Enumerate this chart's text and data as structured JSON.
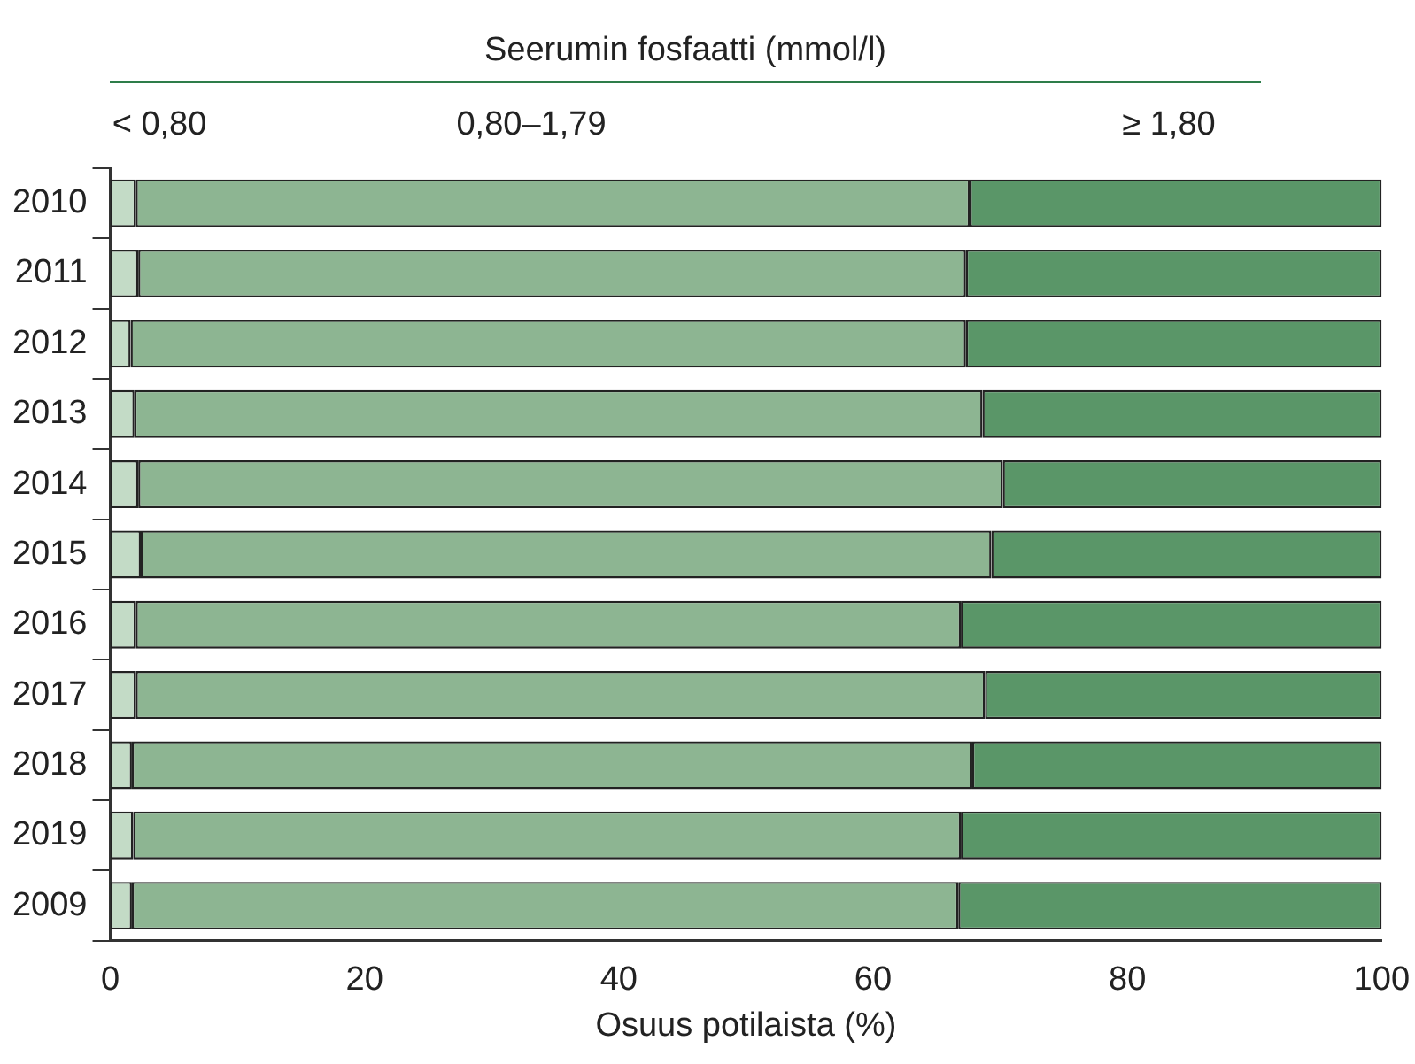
{
  "chart_data": {
    "type": "bar",
    "orientation": "horizontal",
    "stacked": true,
    "legend": "top",
    "legend_title": "Seerumin fosfaatti (mmol/l)",
    "xlabel": "Osuus potilaista (%)",
    "categories": [
      "2010",
      "2011",
      "2012",
      "2013",
      "2014",
      "2015",
      "2016",
      "2017",
      "2018",
      "2019",
      "2009"
    ],
    "xlim": [
      0,
      100
    ],
    "xticks": [
      0,
      20,
      40,
      60,
      80,
      100
    ],
    "grid": false,
    "series": [
      {
        "name": "< 0,80",
        "color": "#c3dbc6",
        "values": [
          2.0,
          2.2,
          1.6,
          1.9,
          2.2,
          2.4,
          2.0,
          2.0,
          1.7,
          1.8,
          1.7
        ]
      },
      {
        "name": "0,80–1,79",
        "color": "#8db592",
        "values": [
          65.6,
          65.1,
          65.7,
          66.7,
          68.0,
          66.9,
          64.9,
          66.8,
          66.1,
          65.1,
          65.0
        ]
      },
      {
        "name": "≥ 1,80",
        "color": "#5a9668",
        "values": [
          32.4,
          32.7,
          32.7,
          31.4,
          29.8,
          30.7,
          33.1,
          31.2,
          32.2,
          33.1,
          33.3
        ]
      }
    ]
  }
}
